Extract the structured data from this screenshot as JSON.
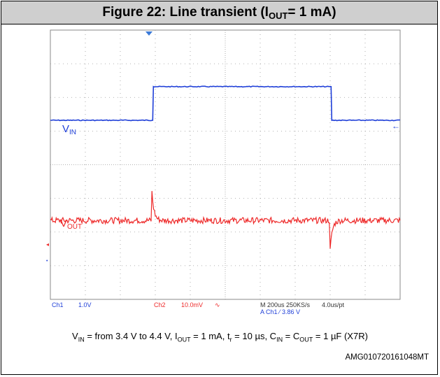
{
  "figure": {
    "title_main": "Figure 22: Line transient (I",
    "title_sub": "OUT",
    "title_end": " = 1 mA)",
    "caption": {
      "p1": "V",
      "p1s": "IN",
      "p2": " = from 3.4 V to 4.4 V, I",
      "p2s": "OUT",
      "p3": " = 1 mA, t",
      "p3s": "r",
      "p4": " = 10 µs, C",
      "p4s": "IN",
      "p5": " = C",
      "p5s": "OUT",
      "p6": " = 1 µF (X7R)"
    },
    "doc_id": "AMG010720161048MT"
  },
  "chart_data": {
    "type": "line",
    "x": [
      0,
      0.58,
      0.59,
      1.6,
      1.61,
      2.0
    ],
    "x_unit": "ms",
    "grid": true,
    "grid_divisions": {
      "x": 10,
      "y": 8
    },
    "series": [
      {
        "name": "V",
        "name_sub": "IN",
        "color": "#1f3fd8",
        "y": [
          3.4,
          3.4,
          4.4,
          4.4,
          3.4,
          3.4
        ],
        "y_unit": "V"
      },
      {
        "name": "V",
        "name_sub": "OUT",
        "color": "#ee2a2a",
        "y": [
          0,
          0,
          0,
          0,
          0,
          0
        ],
        "y_unit": "mV",
        "features": [
          {
            "x": 0.58,
            "dy": 10
          },
          {
            "x": 1.6,
            "dy": -10
          }
        ]
      }
    ],
    "readout": {
      "ch1_label": "Ch1",
      "ch1_scale": "1.0V",
      "ch2_label": "Ch2",
      "ch2_scale": "10.0mV",
      "ch2_coupling": "∿",
      "timebase": "M 200us 250KS/s",
      "sample_interval": "4.0us/pt",
      "trigger": "A  Ch1  ⁄  3.86   V"
    }
  }
}
